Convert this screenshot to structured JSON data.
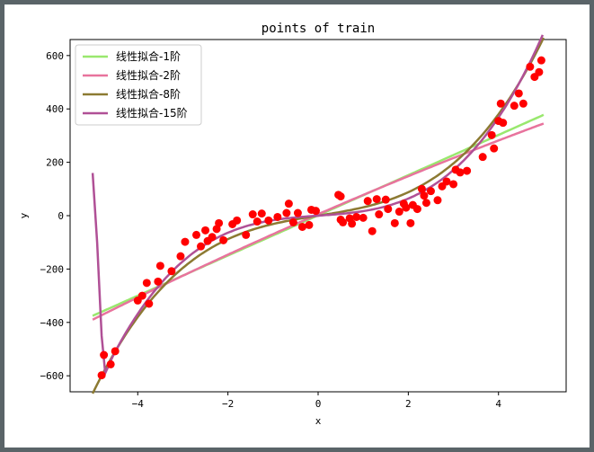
{
  "chart_data": {
    "type": "scatter",
    "title": "points of train",
    "xlabel": "x",
    "ylabel": "y",
    "xlim": [
      -5.5,
      5.5
    ],
    "ylim": [
      -660,
      660
    ],
    "xticks": [
      -4,
      -2,
      0,
      2,
      4
    ],
    "xtick_labels": [
      "−4",
      "−2",
      "0",
      "2",
      "4"
    ],
    "yticks": [
      -600,
      -400,
      -200,
      0,
      200,
      400,
      600
    ],
    "ytick_labels": [
      "−600",
      "−400",
      "−200",
      "0",
      "200",
      "400",
      "600"
    ],
    "grid": false,
    "legend_position": "top-left",
    "points_color": "#ff0000",
    "points": [
      [
        -4.8,
        -598
      ],
      [
        -4.75,
        -522
      ],
      [
        -4.6,
        -557
      ],
      [
        -4.5,
        -508
      ],
      [
        -4.0,
        -318
      ],
      [
        -3.9,
        -300
      ],
      [
        -3.8,
        -252
      ],
      [
        -3.75,
        -330
      ],
      [
        -3.55,
        -247
      ],
      [
        -3.5,
        -188
      ],
      [
        -3.25,
        -208
      ],
      [
        -3.05,
        -152
      ],
      [
        -2.95,
        -98
      ],
      [
        -2.7,
        -72
      ],
      [
        -2.6,
        -115
      ],
      [
        -2.5,
        -55
      ],
      [
        -2.45,
        -95
      ],
      [
        -2.35,
        -80
      ],
      [
        -2.25,
        -50
      ],
      [
        -2.2,
        -28
      ],
      [
        -2.1,
        -92
      ],
      [
        -1.9,
        -32
      ],
      [
        -1.8,
        -18
      ],
      [
        -1.6,
        -72
      ],
      [
        -1.45,
        5
      ],
      [
        -1.35,
        -22
      ],
      [
        -1.25,
        8
      ],
      [
        -1.1,
        -18
      ],
      [
        -0.9,
        -5
      ],
      [
        -0.7,
        10
      ],
      [
        -0.65,
        45
      ],
      [
        -0.55,
        -25
      ],
      [
        -0.45,
        10
      ],
      [
        -0.35,
        -42
      ],
      [
        -0.2,
        -35
      ],
      [
        -0.15,
        22
      ],
      [
        -0.05,
        18
      ],
      [
        0.45,
        78
      ],
      [
        0.5,
        72
      ],
      [
        0.5,
        -15
      ],
      [
        0.55,
        -25
      ],
      [
        0.7,
        -10
      ],
      [
        0.75,
        -30
      ],
      [
        0.85,
        -5
      ],
      [
        1.0,
        -8
      ],
      [
        1.1,
        55
      ],
      [
        1.2,
        -58
      ],
      [
        1.3,
        62
      ],
      [
        1.35,
        5
      ],
      [
        1.5,
        60
      ],
      [
        1.55,
        25
      ],
      [
        1.7,
        -28
      ],
      [
        1.8,
        15
      ],
      [
        1.9,
        45
      ],
      [
        1.95,
        30
      ],
      [
        2.05,
        -28
      ],
      [
        2.1,
        40
      ],
      [
        2.2,
        25
      ],
      [
        2.3,
        100
      ],
      [
        2.35,
        75
      ],
      [
        2.4,
        48
      ],
      [
        2.5,
        92
      ],
      [
        2.65,
        58
      ],
      [
        2.75,
        110
      ],
      [
        2.85,
        128
      ],
      [
        3.0,
        118
      ],
      [
        3.05,
        172
      ],
      [
        3.15,
        162
      ],
      [
        3.3,
        168
      ],
      [
        3.65,
        220
      ],
      [
        3.85,
        302
      ],
      [
        3.9,
        252
      ],
      [
        4.0,
        355
      ],
      [
        4.05,
        420
      ],
      [
        4.1,
        348
      ],
      [
        4.35,
        412
      ],
      [
        4.45,
        458
      ],
      [
        4.55,
        420
      ],
      [
        4.7,
        558
      ],
      [
        4.8,
        520
      ],
      [
        4.9,
        538
      ],
      [
        4.95,
        582
      ]
    ],
    "series": [
      {
        "name": "线性拟合-1阶",
        "color": "#99e86e",
        "coef": [
          1.2,
          75.3,
          0,
          0
        ]
      },
      {
        "name": "线性拟合-2阶",
        "color": "#e8739d",
        "coef": [
          5.3,
          73.5,
          -1.1,
          0
        ]
      },
      {
        "name": "线性拟合-8阶",
        "color": "#8c7a32",
        "coef": [
          0,
          27,
          0,
          4.25
        ]
      },
      {
        "name": "线性拟合-15阶",
        "color": "#b05096",
        "coef": [
          0,
          12,
          0,
          5.0
        ],
        "steep_end": [
          [
            -5.0,
            160
          ],
          [
            -4.9,
            -100
          ],
          [
            -4.8,
            -450
          ],
          [
            -4.72,
            -590
          ]
        ]
      }
    ]
  }
}
